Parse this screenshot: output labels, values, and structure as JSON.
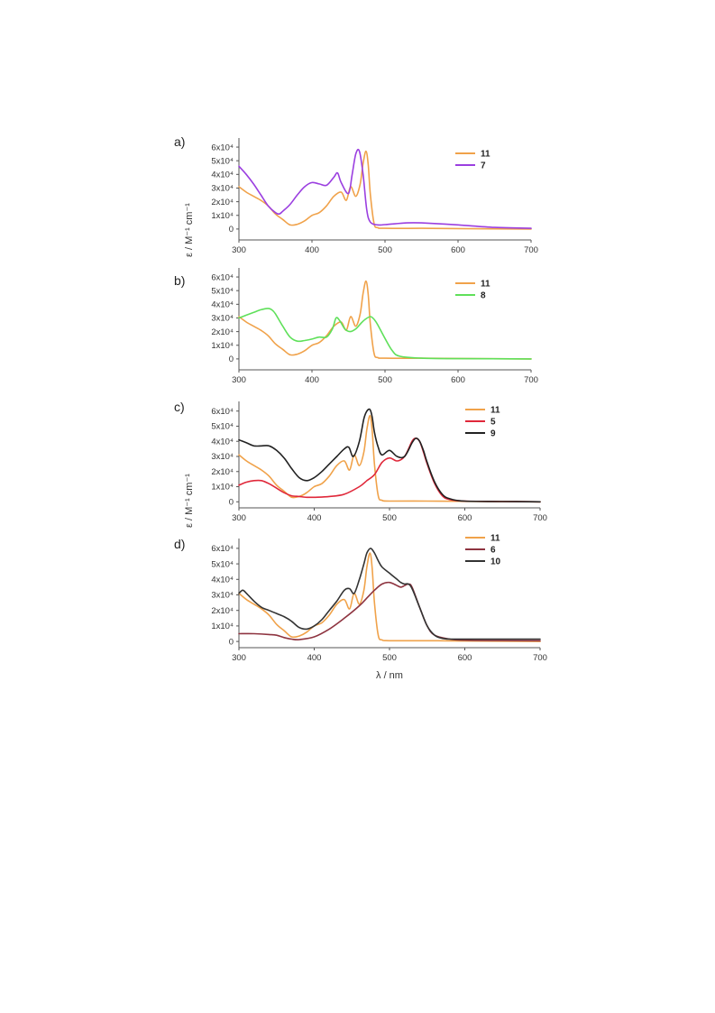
{
  "figure": {
    "ylabel": "ε / M⁻¹ cm⁻¹",
    "xlabel": "λ / nm"
  },
  "colors": {
    "11": "#F0A24A",
    "7": "#9B3FE0",
    "8": "#5FE05A",
    "5": "#E0283A",
    "9": "#222222",
    "6": "#8E3440",
    "10": "#333333"
  },
  "chart_data": [
    {
      "type": "line",
      "panel_label": "a)",
      "xlim": [
        300,
        700
      ],
      "ylim": [
        -8000,
        64000
      ],
      "xticks": [
        300,
        400,
        500,
        600,
        700
      ],
      "yticks": [
        0,
        10000,
        20000,
        30000,
        40000,
        50000,
        60000
      ],
      "ytick_labels": [
        "0",
        "1x10⁴",
        "2x10⁴",
        "3x10⁴",
        "4x10⁴",
        "5x10⁴",
        "6x10⁴"
      ],
      "legend_position": "top-right",
      "series": [
        {
          "name": "11",
          "color": "#F0A24A",
          "x": [
            300,
            310,
            320,
            330,
            340,
            350,
            360,
            370,
            380,
            390,
            400,
            410,
            420,
            430,
            440,
            447,
            453,
            460,
            466,
            470,
            474,
            477,
            480,
            485,
            490,
            500,
            550,
            600,
            700
          ],
          "y": [
            31000,
            27000,
            24000,
            21000,
            17000,
            11000,
            7000,
            3000,
            3500,
            6000,
            10000,
            12000,
            17000,
            24000,
            27000,
            21000,
            31000,
            24000,
            33000,
            48000,
            57000,
            47000,
            25000,
            4000,
            1000,
            500,
            500,
            300,
            0
          ]
        },
        {
          "name": "7",
          "color": "#9B3FE0",
          "x": [
            300,
            310,
            320,
            330,
            340,
            350,
            355,
            360,
            370,
            380,
            390,
            400,
            410,
            420,
            430,
            435,
            440,
            450,
            455,
            460,
            465,
            470,
            475,
            480,
            490,
            500,
            530,
            550,
            600,
            650,
            700
          ],
          "y": [
            46000,
            40000,
            33000,
            25000,
            17000,
            12000,
            11000,
            13000,
            18000,
            25000,
            31000,
            34000,
            33000,
            32000,
            38000,
            41000,
            34000,
            26000,
            40000,
            55000,
            57000,
            40000,
            14000,
            5000,
            3000,
            3200,
            4500,
            4500,
            3000,
            1200,
            500
          ]
        }
      ]
    },
    {
      "type": "line",
      "panel_label": "b)",
      "xlim": [
        300,
        700
      ],
      "ylim": [
        -8000,
        64000
      ],
      "xticks": [
        300,
        400,
        500,
        600,
        700
      ],
      "yticks": [
        0,
        10000,
        20000,
        30000,
        40000,
        50000,
        60000
      ],
      "ytick_labels": [
        "0",
        "1x10⁴",
        "2x10⁴",
        "3x10⁴",
        "4x10⁴",
        "5x10⁴",
        "6x10⁴"
      ],
      "legend_position": "top-right",
      "series": [
        {
          "name": "11",
          "color": "#F0A24A",
          "x": [
            300,
            310,
            320,
            330,
            340,
            350,
            360,
            370,
            380,
            390,
            400,
            410,
            420,
            430,
            440,
            447,
            453,
            460,
            466,
            470,
            474,
            477,
            480,
            485,
            490,
            500,
            550,
            600,
            700
          ],
          "y": [
            31000,
            27000,
            24000,
            21000,
            17000,
            11000,
            7000,
            3000,
            3500,
            6000,
            10000,
            12000,
            17000,
            24000,
            27000,
            21000,
            31000,
            24000,
            33000,
            48000,
            57000,
            47000,
            25000,
            4000,
            1000,
            500,
            500,
            300,
            0
          ]
        },
        {
          "name": "8",
          "color": "#5FE05A",
          "x": [
            300,
            310,
            320,
            330,
            340,
            345,
            350,
            360,
            370,
            380,
            390,
            400,
            410,
            420,
            428,
            433,
            438,
            445,
            452,
            460,
            467,
            473,
            480,
            485,
            490,
            500,
            510,
            520,
            550,
            600,
            700
          ],
          "y": [
            30000,
            32000,
            34000,
            36000,
            37000,
            36000,
            33000,
            24000,
            16000,
            13000,
            13500,
            14500,
            16000,
            16000,
            22000,
            30000,
            28000,
            22000,
            20000,
            22000,
            26000,
            29000,
            31000,
            29000,
            25000,
            15000,
            6000,
            2000,
            500,
            200,
            0
          ]
        }
      ]
    },
    {
      "type": "line",
      "panel_label": "c)",
      "xlim": [
        300,
        700
      ],
      "ylim": [
        -4000,
        64000
      ],
      "xticks": [
        300,
        400,
        500,
        600,
        700
      ],
      "yticks": [
        0,
        10000,
        20000,
        30000,
        40000,
        50000,
        60000
      ],
      "ytick_labels": [
        "0",
        "1x10⁴",
        "2x10⁴",
        "3x10⁴",
        "4x10⁴",
        "5x10⁴",
        "6x10⁴"
      ],
      "legend_position": "top-right",
      "series": [
        {
          "name": "11",
          "color": "#F0A24A",
          "x": [
            300,
            310,
            320,
            330,
            340,
            350,
            360,
            370,
            380,
            390,
            400,
            410,
            420,
            430,
            440,
            447,
            453,
            460,
            466,
            470,
            474,
            477,
            480,
            485,
            490,
            500,
            550,
            600,
            700
          ],
          "y": [
            31000,
            27000,
            24000,
            21000,
            17000,
            11000,
            7000,
            3000,
            3500,
            6000,
            10000,
            12000,
            17000,
            24000,
            27000,
            21000,
            31000,
            24000,
            33000,
            48000,
            57000,
            47000,
            25000,
            4000,
            1000,
            500,
            500,
            300,
            0
          ]
        },
        {
          "name": "5",
          "color": "#E0283A",
          "x": [
            300,
            310,
            320,
            330,
            340,
            350,
            360,
            370,
            380,
            390,
            400,
            420,
            440,
            460,
            470,
            480,
            490,
            500,
            510,
            520,
            530,
            535,
            540,
            545,
            550,
            560,
            570,
            580,
            600,
            650,
            700
          ],
          "y": [
            11000,
            13000,
            14000,
            14000,
            12000,
            9000,
            6000,
            4000,
            3500,
            3000,
            3000,
            3500,
            5000,
            10000,
            14000,
            18000,
            26000,
            29000,
            27000,
            30000,
            40000,
            42000,
            40000,
            33000,
            25000,
            12000,
            4000,
            1500,
            500,
            200,
            0
          ]
        },
        {
          "name": "9",
          "color": "#222222",
          "x": [
            300,
            310,
            320,
            330,
            340,
            350,
            360,
            370,
            380,
            390,
            400,
            410,
            420,
            430,
            440,
            446,
            452,
            460,
            466,
            470,
            474,
            477,
            480,
            485,
            490,
            500,
            510,
            520,
            530,
            535,
            540,
            545,
            550,
            560,
            570,
            580,
            600,
            650,
            700
          ],
          "y": [
            41000,
            39000,
            37000,
            37000,
            37000,
            34000,
            29000,
            22000,
            16000,
            14000,
            16000,
            20000,
            25000,
            30000,
            35000,
            36000,
            30000,
            40000,
            55000,
            60000,
            61000,
            56000,
            46000,
            36000,
            31000,
            34000,
            30000,
            30000,
            39000,
            42000,
            40000,
            34000,
            26000,
            13000,
            5000,
            2000,
            500,
            200,
            0
          ]
        }
      ]
    },
    {
      "type": "line",
      "panel_label": "d)",
      "xlim": [
        300,
        700
      ],
      "ylim": [
        -4000,
        64000
      ],
      "xticks": [
        300,
        400,
        500,
        600,
        700
      ],
      "yticks": [
        0,
        10000,
        20000,
        30000,
        40000,
        50000,
        60000
      ],
      "ytick_labels": [
        "0",
        "1x10⁴",
        "2x10⁴",
        "3x10⁴",
        "4x10⁴",
        "5x10⁴",
        "6x10⁴"
      ],
      "legend_position": "top-right",
      "series": [
        {
          "name": "11",
          "color": "#F0A24A",
          "x": [
            300,
            310,
            320,
            330,
            340,
            350,
            360,
            370,
            380,
            390,
            400,
            410,
            420,
            430,
            440,
            447,
            453,
            460,
            466,
            470,
            474,
            477,
            480,
            485,
            490,
            500,
            550,
            600,
            700
          ],
          "y": [
            31000,
            27000,
            24000,
            21000,
            17000,
            11000,
            7000,
            3000,
            3500,
            6000,
            10000,
            12000,
            17000,
            24000,
            27000,
            21000,
            31000,
            24000,
            33000,
            48000,
            57000,
            47000,
            25000,
            4000,
            1000,
            500,
            500,
            300,
            0
          ]
        },
        {
          "name": "6",
          "color": "#8E3440",
          "x": [
            300,
            320,
            340,
            350,
            360,
            370,
            380,
            400,
            420,
            440,
            460,
            470,
            480,
            490,
            500,
            510,
            515,
            520,
            525,
            530,
            540,
            550,
            560,
            580,
            600,
            650,
            700
          ],
          "y": [
            5000,
            5000,
            4500,
            4000,
            2500,
            1500,
            1200,
            3000,
            8000,
            15000,
            23000,
            28000,
            33000,
            37000,
            38000,
            36000,
            35000,
            36000,
            37000,
            35000,
            22000,
            10000,
            4000,
            1500,
            800,
            600,
            500
          ]
        },
        {
          "name": "10",
          "color": "#333333",
          "x": [
            300,
            305,
            310,
            320,
            330,
            340,
            350,
            360,
            370,
            380,
            390,
            400,
            410,
            420,
            430,
            440,
            447,
            453,
            460,
            466,
            470,
            475,
            480,
            485,
            490,
            500,
            510,
            515,
            520,
            525,
            530,
            540,
            550,
            560,
            570,
            580,
            600,
            650,
            700
          ],
          "y": [
            31000,
            33000,
            31000,
            26000,
            22000,
            20000,
            18000,
            16000,
            13000,
            9000,
            8000,
            10000,
            14000,
            20000,
            26000,
            33000,
            34000,
            31000,
            40000,
            50000,
            57000,
            60000,
            57000,
            52000,
            48000,
            44000,
            40000,
            38000,
            37000,
            37000,
            34000,
            22000,
            10000,
            4000,
            2000,
            1500,
            1500,
            1500,
            1500
          ]
        }
      ]
    }
  ]
}
